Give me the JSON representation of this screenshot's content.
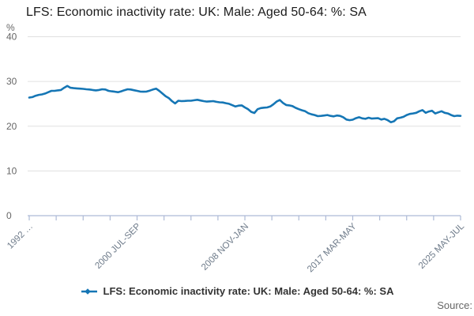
{
  "title": "LFS: Economic inactivity rate: UK: Male: Aged 50-64: %: SA",
  "source_label": "Source:",
  "legend": {
    "label": "LFS: Economic inactivity rate: UK: Male: Aged 50-64: %: SA"
  },
  "chart_data": {
    "type": "line",
    "title": "LFS: Economic inactivity rate: UK: Male: Aged 50-64: %: SA",
    "unit_label": "%",
    "ylabel": "%",
    "xlabel": "",
    "ylim": [
      0,
      40
    ],
    "y_ticks": [
      0,
      10,
      20,
      30,
      40
    ],
    "grid": "horizontal",
    "legend_position": "bottom-center",
    "x_tick_labels": [
      "1992 …",
      "2000 JUL-SEP",
      "2008 NOV-JAN",
      "2017 MAR-MAY",
      "2025 MAY-JUL"
    ],
    "minor_ticks_per_label_gap": 4,
    "colors": {
      "line": "#1576b5",
      "grid": "#e0e0e0",
      "axis": "#aebad6",
      "x_tick_label": "#6e7b8a",
      "y_tick_label": "#666666",
      "unit_label": "#666666"
    },
    "series": [
      {
        "name": "LFS: Economic inactivity rate: UK: Male: Aged 50-64: %: SA",
        "x_start": "1992 MAR-MAY",
        "x_end": "2025 MAY-JUL",
        "values": [
          26.4,
          26.5,
          26.8,
          27.0,
          27.1,
          27.3,
          27.6,
          27.9,
          27.9,
          28.0,
          28.1,
          28.6,
          29.0,
          28.6,
          28.5,
          28.45,
          28.4,
          28.35,
          28.25,
          28.2,
          28.1,
          28.0,
          28.1,
          28.25,
          28.2,
          27.9,
          27.8,
          27.7,
          27.6,
          27.8,
          28.05,
          28.25,
          28.2,
          28.05,
          27.9,
          27.75,
          27.7,
          27.75,
          27.95,
          28.2,
          28.4,
          27.9,
          27.3,
          26.7,
          26.3,
          25.6,
          25.1,
          25.7,
          25.6,
          25.65,
          25.7,
          25.7,
          25.8,
          25.9,
          25.75,
          25.6,
          25.5,
          25.55,
          25.6,
          25.45,
          25.35,
          25.3,
          25.15,
          25.0,
          24.7,
          24.4,
          24.6,
          24.65,
          24.2,
          23.8,
          23.2,
          22.95,
          23.8,
          24.05,
          24.15,
          24.2,
          24.4,
          24.9,
          25.5,
          25.85,
          25.2,
          24.75,
          24.65,
          24.5,
          24.1,
          23.8,
          23.55,
          23.35,
          22.9,
          22.65,
          22.5,
          22.25,
          22.3,
          22.4,
          22.5,
          22.3,
          22.2,
          22.4,
          22.3,
          22.0,
          21.5,
          21.35,
          21.45,
          21.8,
          22.0,
          21.75,
          21.65,
          21.9,
          21.7,
          21.75,
          21.8,
          21.5,
          21.65,
          21.35,
          20.9,
          21.1,
          21.75,
          21.9,
          22.1,
          22.5,
          22.75,
          22.85,
          23.0,
          23.35,
          23.6,
          23.0,
          23.3,
          23.45,
          22.85,
          23.1,
          23.35,
          23.0,
          22.85,
          22.5,
          22.25,
          22.35,
          22.3
        ]
      }
    ]
  }
}
